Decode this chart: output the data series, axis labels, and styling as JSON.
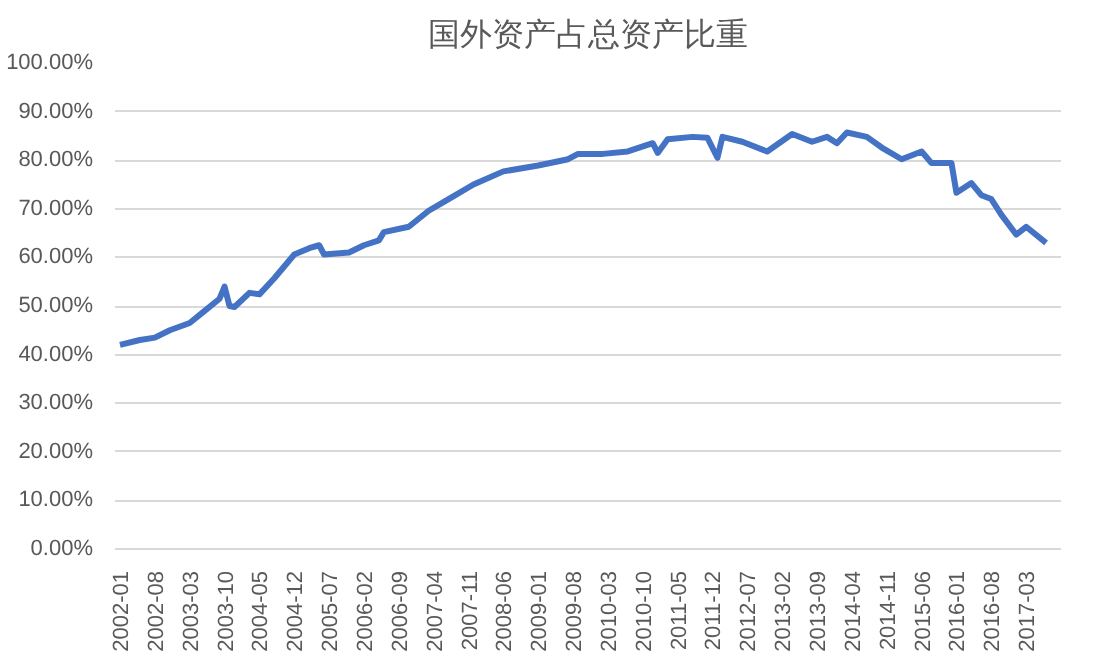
{
  "chart_data": {
    "type": "line",
    "title": "国外资产占总资产比重",
    "x": [
      "2002-01",
      "2002-05",
      "2002-08",
      "2002-11",
      "2003-03",
      "2003-06",
      "2003-09",
      "2003-10",
      "2003-11",
      "2003-12",
      "2004-03",
      "2004-05",
      "2004-08",
      "2004-12",
      "2005-03",
      "2005-05",
      "2005-06",
      "2005-11",
      "2006-02",
      "2006-05",
      "2006-06",
      "2006-11",
      "2007-03",
      "2007-07",
      "2007-12",
      "2008-06",
      "2009-01",
      "2009-07",
      "2009-09",
      "2010-02",
      "2010-07",
      "2010-12",
      "2011-01",
      "2011-03",
      "2011-08",
      "2011-11",
      "2012-01",
      "2012-02",
      "2012-06",
      "2012-11",
      "2013-04",
      "2013-08",
      "2013-11",
      "2014-01",
      "2014-03",
      "2014-07",
      "2014-10",
      "2015-02",
      "2015-06",
      "2015-08",
      "2015-12",
      "2016-01",
      "2016-04",
      "2016-06",
      "2016-08",
      "2016-10",
      "2017-01",
      "2017-03",
      "2017-07"
    ],
    "series": [
      {
        "color": "#4472c4",
        "values": [
          42.0,
          43.0,
          43.5,
          45.0,
          46.5,
          49.0,
          51.5,
          54.0,
          50.0,
          49.8,
          52.7,
          52.4,
          55.7,
          60.6,
          61.9,
          62.5,
          60.6,
          61.0,
          62.5,
          63.5,
          65.2,
          66.3,
          69.6,
          72.0,
          75.0,
          77.7,
          78.9,
          80.2,
          81.3,
          81.3,
          81.8,
          83.5,
          81.5,
          84.3,
          84.8,
          84.6,
          80.5,
          84.8,
          83.8,
          81.8,
          85.4,
          83.8,
          84.8,
          83.5,
          85.7,
          84.8,
          82.6,
          80.2,
          81.8,
          79.4,
          79.4,
          73.3,
          75.3,
          72.8,
          72.0,
          68.8,
          64.7,
          66.3,
          63.0
        ]
      }
    ],
    "xlim": [
      "2001-12",
      "2017-10"
    ],
    "xticks": [
      "2002-01",
      "2002-08",
      "2003-03",
      "2003-10",
      "2004-05",
      "2004-12",
      "2005-07",
      "2006-02",
      "2006-09",
      "2007-04",
      "2007-11",
      "2008-06",
      "2009-01",
      "2009-08",
      "2010-03",
      "2010-10",
      "2011-05",
      "2011-12",
      "2012-07",
      "2013-02",
      "2013-09",
      "2014-04",
      "2014-11",
      "2015-06",
      "2016-01",
      "2016-08",
      "2017-03"
    ],
    "ylim": [
      0,
      100
    ],
    "yticks": [
      {
        "value": 0,
        "label": "0.00%"
      },
      {
        "value": 10,
        "label": "10.00%"
      },
      {
        "value": 20,
        "label": "20.00%"
      },
      {
        "value": 30,
        "label": "30.00%"
      },
      {
        "value": 40,
        "label": "40.00%"
      },
      {
        "value": 50,
        "label": "50.00%"
      },
      {
        "value": 60,
        "label": "60.00%"
      },
      {
        "value": 70,
        "label": "70.00%"
      },
      {
        "value": 80,
        "label": "80.00%"
      },
      {
        "value": 90,
        "label": "90.00%"
      },
      {
        "value": 100,
        "label": "100.00%"
      }
    ],
    "grid": "y",
    "marker": "none",
    "line_style": "solid"
  }
}
